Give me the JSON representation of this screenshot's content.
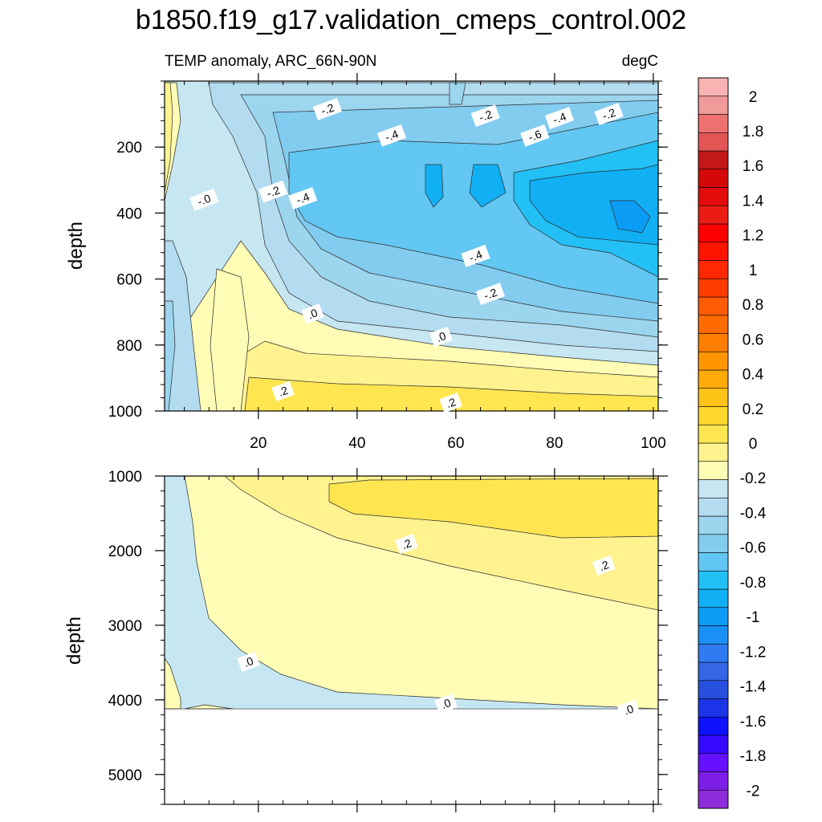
{
  "chart_data": {
    "type": "heatmap",
    "title": "b1850.f19_g17.validation_cmeps_control.002",
    "subtitle_left": "TEMP anomaly, ARC_66N-90N",
    "subtitle_right": "degC",
    "xlabel": "",
    "xlim": [
      1,
      101
    ],
    "x_ticks": [
      20,
      40,
      60,
      80,
      100
    ],
    "panels": [
      {
        "name": "upper",
        "ylabel": "depth",
        "ylim": [
          0,
          1000
        ],
        "y_ticks": [
          200,
          400,
          600,
          800,
          1000
        ],
        "contour_labels": [
          {
            "text": "-.2",
            "x": 34,
            "y": 85
          },
          {
            "text": "-.2",
            "x": 66,
            "y": 105
          },
          {
            "text": "-.4",
            "x": 81,
            "y": 112
          },
          {
            "text": "-.2",
            "x": 91,
            "y": 100
          },
          {
            "text": "-.4",
            "x": 47,
            "y": 165
          },
          {
            "text": "-.6",
            "x": 76,
            "y": 165
          },
          {
            "text": "-.2",
            "x": 23,
            "y": 335
          },
          {
            "text": "-.0",
            "x": 9,
            "y": 360
          },
          {
            "text": "-.4",
            "x": 29,
            "y": 355
          },
          {
            "text": "-.4",
            "x": 64,
            "y": 530
          },
          {
            "text": "-.2",
            "x": 67,
            "y": 645
          },
          {
            "text": ".0",
            "x": 31,
            "y": 705
          },
          {
            "text": ".0",
            "x": 57,
            "y": 775
          },
          {
            "text": ".2",
            "x": 25,
            "y": 940
          },
          {
            "text": ".2",
            "x": 59,
            "y": 975
          }
        ]
      },
      {
        "name": "lower",
        "ylabel": "depth",
        "ylim": [
          1000,
          5400
        ],
        "y_ticks": [
          1000,
          2000,
          3000,
          4000,
          5000
        ],
        "ocean_bottom": 4120,
        "contour_labels": [
          {
            "text": ".2",
            "x": 50,
            "y": 1910
          },
          {
            "text": ".2",
            "x": 90,
            "y": 2200
          },
          {
            "text": ".0",
            "x": 18,
            "y": 3490
          },
          {
            "text": ".0",
            "x": 58,
            "y": 4050
          },
          {
            "text": ".0",
            "x": 95,
            "y": 4130
          }
        ]
      }
    ],
    "colorbar": {
      "levels": [
        -2,
        -1.8,
        -1.6,
        -1.4,
        -1.2,
        -1,
        -0.8,
        -0.6,
        -0.4,
        -0.2,
        0,
        0.2,
        0.4,
        0.6,
        0.8,
        1,
        1.2,
        1.4,
        1.6,
        1.8,
        2
      ],
      "labels": [
        "-2",
        "-1.8",
        "-1.6",
        "-1.4",
        "-1.2",
        "-1",
        "-0.8",
        "-0.6",
        "-0.4",
        "-0.2",
        "0",
        "0.2",
        "0.4",
        "0.6",
        "0.8",
        "1",
        "1.2",
        "1.4",
        "1.6",
        "1.8",
        "2"
      ],
      "colors": [
        "#8f2ddc",
        "#7d1de8",
        "#6510ff",
        "#3508ff",
        "#0d12ff",
        "#1c34e8",
        "#2850e0",
        "#3566e6",
        "#2f7cf2",
        "#1a8ff5",
        "#0b9cf5",
        "#11b0f5",
        "#22c0f5",
        "#62c7f2",
        "#82ccf0",
        "#9cd5ee",
        "#b4dcf0",
        "#c6e6f2",
        "#fffcb5",
        "#fff28f",
        "#ffe650",
        "#ffd62c",
        "#ffc417",
        "#ffaa08",
        "#ff9600",
        "#ff7e00",
        "#ff6b00",
        "#ff5a04",
        "#ff3c00",
        "#ff2800",
        "#ff1400",
        "#ff0000",
        "#ea1c14",
        "#e20c0c",
        "#d40808",
        "#c31818",
        "#e25555",
        "#ed7171",
        "#f09a9a",
        "#f9b3b3"
      ]
    },
    "panel_colors": {
      "blue_l1": "#c6e6f2",
      "blue_l2": "#b4dcf0",
      "blue_l3": "#9cd5ee",
      "blue_l4": "#82ccf0",
      "blue_l5": "#62c7f2",
      "blue_l6": "#22c0f5",
      "blue_l7": "#11b0f5",
      "blue_l8": "#0b9cf5",
      "yellow_l1": "#fffcb5",
      "yellow_l2": "#fff28f",
      "yellow_l3": "#ffe650"
    }
  }
}
